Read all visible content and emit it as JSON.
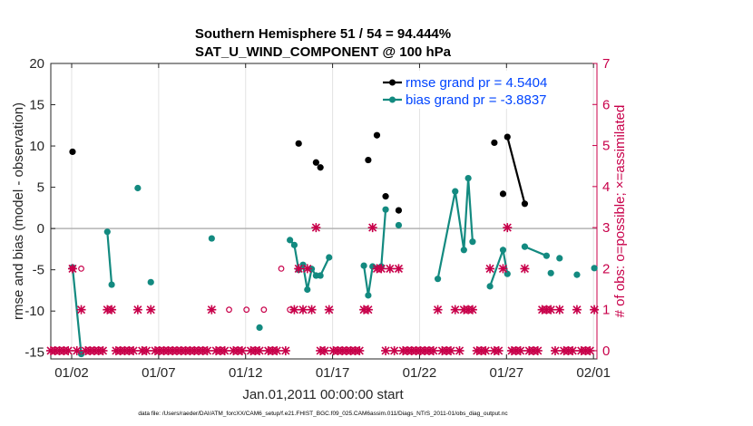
{
  "chart_data": {
    "type": "line",
    "title": "Southern Hemisphere 51 / 54 = 94.444%",
    "subtitle": "SAT_U_WIND_COMPONENT @ 100 hPa",
    "xlabel": "Jan.01,2011 00:00:00 start",
    "ylabel_left": "rmse and bias (model - observation)",
    "ylabel_right": "# of obs: o=possible; ×=assimilated",
    "footnote": "data file: /Users/raeder/DAI/ATM_forcXX/CAM6_setup/f.e21.FHIST_BGC.f09_025.CAM6assim.011/Diags_NTrS_2011-01/obs_diag_output.nc",
    "xlim": [
      0.5,
      31.9
    ],
    "ylim_left": [
      -15.8,
      20
    ],
    "ylim_right": [
      -0.2,
      7
    ],
    "x_ticks": [
      1.7,
      6.7,
      11.7,
      16.7,
      21.7,
      26.7,
      31.7
    ],
    "x_tick_labels": [
      "01/02",
      "01/07",
      "01/12",
      "01/17",
      "01/22",
      "01/27",
      "02/01"
    ],
    "y_ticks_left": [
      20,
      15,
      10,
      5,
      0,
      -5,
      -10,
      -15
    ],
    "y_ticks_right": [
      0,
      1,
      2,
      3,
      4,
      5,
      6,
      7
    ],
    "zero_line": 0,
    "legend": [
      {
        "label": "rmse grand pr = 4.5404",
        "color": "#000000"
      },
      {
        "label": "bias grand pr = -3.8837",
        "color": "#138a80"
      }
    ],
    "series": [
      {
        "name": "rmse",
        "color": "#000000",
        "points": [
          [
            1.75,
            9.3
          ],
          [
            14.75,
            10.3
          ],
          [
            15.75,
            8.0
          ],
          [
            16.0,
            7.4
          ],
          [
            18.75,
            8.3
          ],
          [
            19.25,
            11.3
          ],
          [
            19.75,
            3.9
          ],
          [
            20.5,
            2.2
          ],
          [
            26.0,
            10.4
          ],
          [
            26.5,
            4.2
          ],
          [
            26.75,
            11.1
          ],
          [
            27.75,
            3.0
          ]
        ],
        "connected_runs": [
          [
            10,
            11
          ]
        ]
      },
      {
        "name": "bias",
        "color": "#138a80",
        "points": [
          [
            1.75,
            -4.7
          ],
          [
            2.25,
            -15.2
          ],
          [
            3.75,
            -0.4
          ],
          [
            4.0,
            -6.8
          ],
          [
            5.5,
            4.9
          ],
          [
            6.25,
            -6.5
          ],
          [
            9.75,
            -1.2
          ],
          [
            12.5,
            -12.0
          ],
          [
            14.25,
            -1.4
          ],
          [
            14.5,
            -2.0
          ],
          [
            14.75,
            -5.0
          ],
          [
            15.0,
            -4.4
          ],
          [
            15.25,
            -7.4
          ],
          [
            15.5,
            -4.9
          ],
          [
            15.75,
            -5.7
          ],
          [
            16.0,
            -5.7
          ],
          [
            16.5,
            -3.5
          ],
          [
            18.5,
            -4.5
          ],
          [
            18.75,
            -8.1
          ],
          [
            19.0,
            -4.6
          ],
          [
            19.5,
            -4.6
          ],
          [
            19.75,
            2.3
          ],
          [
            20.5,
            0.4
          ],
          [
            22.75,
            -6.1
          ],
          [
            23.75,
            4.5
          ],
          [
            24.25,
            -2.6
          ],
          [
            24.5,
            6.1
          ],
          [
            24.75,
            -1.6
          ],
          [
            25.75,
            -7.0
          ],
          [
            26.5,
            -2.6
          ],
          [
            26.75,
            -5.5
          ],
          [
            27.75,
            -2.2
          ],
          [
            29.0,
            -3.3
          ],
          [
            29.25,
            -5.4
          ],
          [
            29.75,
            -3.6
          ],
          [
            30.75,
            -5.6
          ],
          [
            31.75,
            -4.8
          ]
        ],
        "connected_runs": [
          [
            0,
            1
          ],
          [
            2,
            3
          ],
          [
            8,
            16
          ],
          [
            17,
            21
          ],
          [
            23,
            27
          ],
          [
            28,
            30
          ],
          [
            31,
            32
          ]
        ]
      }
    ],
    "obs_possible": {
      "color": "#c8004a",
      "points": [
        [
          1.75,
          2
        ],
        [
          2.25,
          2
        ],
        [
          10.75,
          1
        ],
        [
          11.75,
          1
        ],
        [
          12.75,
          1
        ],
        [
          13.75,
          2
        ],
        [
          14.25,
          1
        ]
      ]
    },
    "obs_assimilated": {
      "color": "#c8004a",
      "values": [
        [
          0.5,
          0
        ],
        [
          0.75,
          0
        ],
        [
          1.0,
          0
        ],
        [
          1.25,
          0
        ],
        [
          1.5,
          0
        ],
        [
          1.75,
          2
        ],
        [
          2.0,
          0
        ],
        [
          2.25,
          1
        ],
        [
          2.5,
          0
        ],
        [
          2.75,
          0
        ],
        [
          3.0,
          0
        ],
        [
          3.25,
          0
        ],
        [
          3.5,
          0
        ],
        [
          3.75,
          1
        ],
        [
          4.0,
          1
        ],
        [
          4.25,
          0
        ],
        [
          4.5,
          0
        ],
        [
          4.75,
          0
        ],
        [
          5.0,
          0
        ],
        [
          5.25,
          0
        ],
        [
          5.5,
          1
        ],
        [
          5.75,
          0
        ],
        [
          6.0,
          0
        ],
        [
          6.25,
          1
        ],
        [
          6.5,
          0
        ],
        [
          6.75,
          0
        ],
        [
          7.0,
          0
        ],
        [
          7.25,
          0
        ],
        [
          7.5,
          0
        ],
        [
          7.75,
          0
        ],
        [
          8.0,
          0
        ],
        [
          8.25,
          0
        ],
        [
          8.5,
          0
        ],
        [
          8.75,
          0
        ],
        [
          9.0,
          0
        ],
        [
          9.25,
          0
        ],
        [
          9.5,
          0
        ],
        [
          9.75,
          1
        ],
        [
          10.0,
          0
        ],
        [
          10.25,
          0
        ],
        [
          10.5,
          0
        ],
        [
          11.0,
          0
        ],
        [
          11.25,
          0
        ],
        [
          11.5,
          0
        ],
        [
          12.0,
          0
        ],
        [
          12.25,
          0
        ],
        [
          12.5,
          0
        ],
        [
          13.0,
          0
        ],
        [
          13.25,
          0
        ],
        [
          13.5,
          0
        ],
        [
          14.0,
          0
        ],
        [
          14.5,
          1
        ],
        [
          14.75,
          2
        ],
        [
          15.0,
          1
        ],
        [
          15.25,
          2
        ],
        [
          15.5,
          1
        ],
        [
          15.75,
          3
        ],
        [
          16.0,
          0
        ],
        [
          16.25,
          0
        ],
        [
          16.5,
          1
        ],
        [
          16.75,
          0
        ],
        [
          17.0,
          0
        ],
        [
          17.25,
          0
        ],
        [
          17.5,
          0
        ],
        [
          17.75,
          0
        ],
        [
          18.0,
          0
        ],
        [
          18.25,
          0
        ],
        [
          18.5,
          1
        ],
        [
          18.75,
          1
        ],
        [
          19.0,
          3
        ],
        [
          19.25,
          2
        ],
        [
          19.5,
          2
        ],
        [
          19.75,
          0
        ],
        [
          20.0,
          2
        ],
        [
          20.25,
          0
        ],
        [
          20.5,
          2
        ],
        [
          20.75,
          0
        ],
        [
          21.0,
          0
        ],
        [
          21.25,
          0
        ],
        [
          21.5,
          0
        ],
        [
          21.75,
          0
        ],
        [
          22.0,
          0
        ],
        [
          22.25,
          0
        ],
        [
          22.5,
          0
        ],
        [
          22.75,
          1
        ],
        [
          23.0,
          0
        ],
        [
          23.25,
          0
        ],
        [
          23.5,
          0
        ],
        [
          23.75,
          1
        ],
        [
          24.0,
          0
        ],
        [
          24.25,
          1
        ],
        [
          24.5,
          1
        ],
        [
          24.75,
          1
        ],
        [
          25.0,
          0
        ],
        [
          25.25,
          0
        ],
        [
          25.5,
          0
        ],
        [
          25.75,
          2
        ],
        [
          26.0,
          0
        ],
        [
          26.25,
          0
        ],
        [
          26.5,
          2
        ],
        [
          26.75,
          3
        ],
        [
          27.0,
          0
        ],
        [
          27.25,
          0
        ],
        [
          27.5,
          0
        ],
        [
          27.75,
          2
        ],
        [
          28.0,
          0
        ],
        [
          28.25,
          0
        ],
        [
          28.5,
          0
        ],
        [
          28.75,
          1
        ],
        [
          29.0,
          1
        ],
        [
          29.25,
          1
        ],
        [
          29.5,
          0
        ],
        [
          29.75,
          1
        ],
        [
          30.0,
          0
        ],
        [
          30.25,
          0
        ],
        [
          30.5,
          0
        ],
        [
          30.75,
          1
        ],
        [
          31.0,
          0
        ],
        [
          31.25,
          0
        ],
        [
          31.5,
          0
        ],
        [
          31.75,
          1
        ]
      ]
    }
  }
}
